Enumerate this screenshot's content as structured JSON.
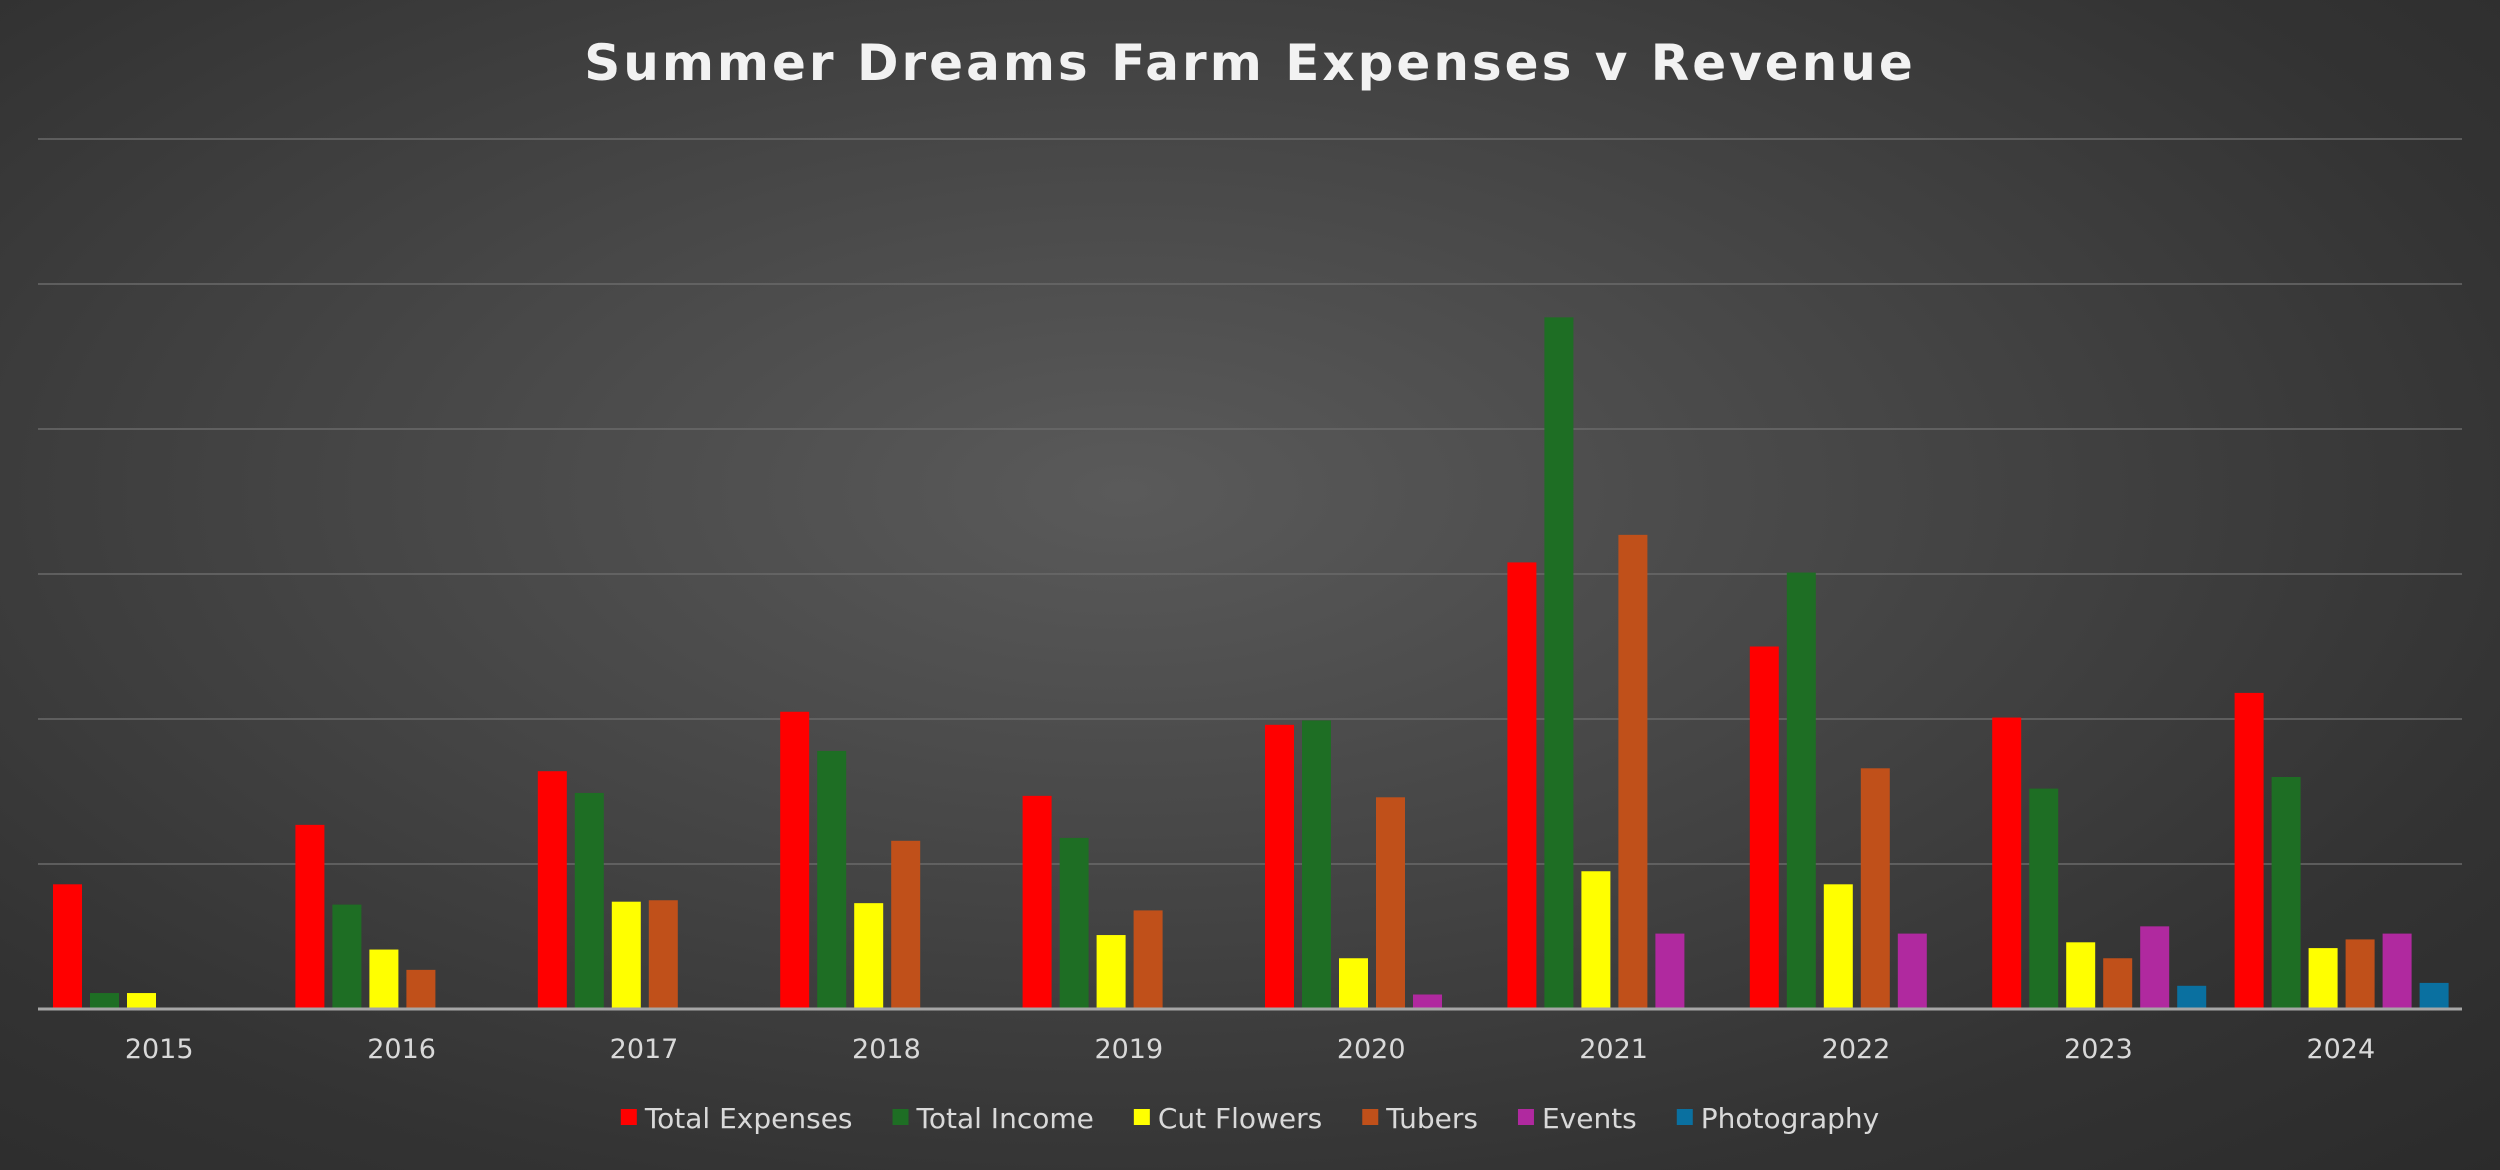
{
  "chart_data": {
    "type": "bar",
    "title": "Summer Dreams Farm Expenses v Revenue",
    "xlabel": "",
    "ylabel": "",
    "categories": [
      "2015",
      "2016",
      "2017",
      "2018",
      "2019",
      "2020",
      "2021",
      "2022",
      "2023",
      "2024"
    ],
    "ylim": [
      0,
      6
    ],
    "gridlines": true,
    "y_tick_labels_shown": false,
    "legend_position": "bottom",
    "series": [
      {
        "name": "Total Expenses",
        "color": "#ff0000",
        "values": [
          0.86,
          1.27,
          1.64,
          2.05,
          1.47,
          1.96,
          3.08,
          2.5,
          2.01,
          2.18
        ]
      },
      {
        "name": "Total Income",
        "color": "#1e6e24",
        "values": [
          0.11,
          0.72,
          1.49,
          1.78,
          1.18,
          1.99,
          4.77,
          3.01,
          1.52,
          1.6
        ]
      },
      {
        "name": "Cut Flowers",
        "color": "#ffff00",
        "values": [
          0.11,
          0.41,
          0.74,
          0.73,
          0.51,
          0.35,
          0.95,
          0.86,
          0.46,
          0.42
        ]
      },
      {
        "name": "Tubers",
        "color": "#c0501a",
        "values": [
          0.0,
          0.27,
          0.75,
          1.16,
          0.68,
          1.46,
          3.27,
          1.66,
          0.35,
          0.48
        ]
      },
      {
        "name": "Events",
        "color": "#b0299f",
        "values": [
          0.0,
          0.0,
          0.0,
          0.0,
          0.0,
          0.1,
          0.52,
          0.52,
          0.57,
          0.52
        ]
      },
      {
        "name": "Photography",
        "color": "#0a70a0",
        "values": [
          0.0,
          0.0,
          0.0,
          0.0,
          0.0,
          0.0,
          0.0,
          0.0,
          0.16,
          0.18
        ]
      }
    ]
  }
}
